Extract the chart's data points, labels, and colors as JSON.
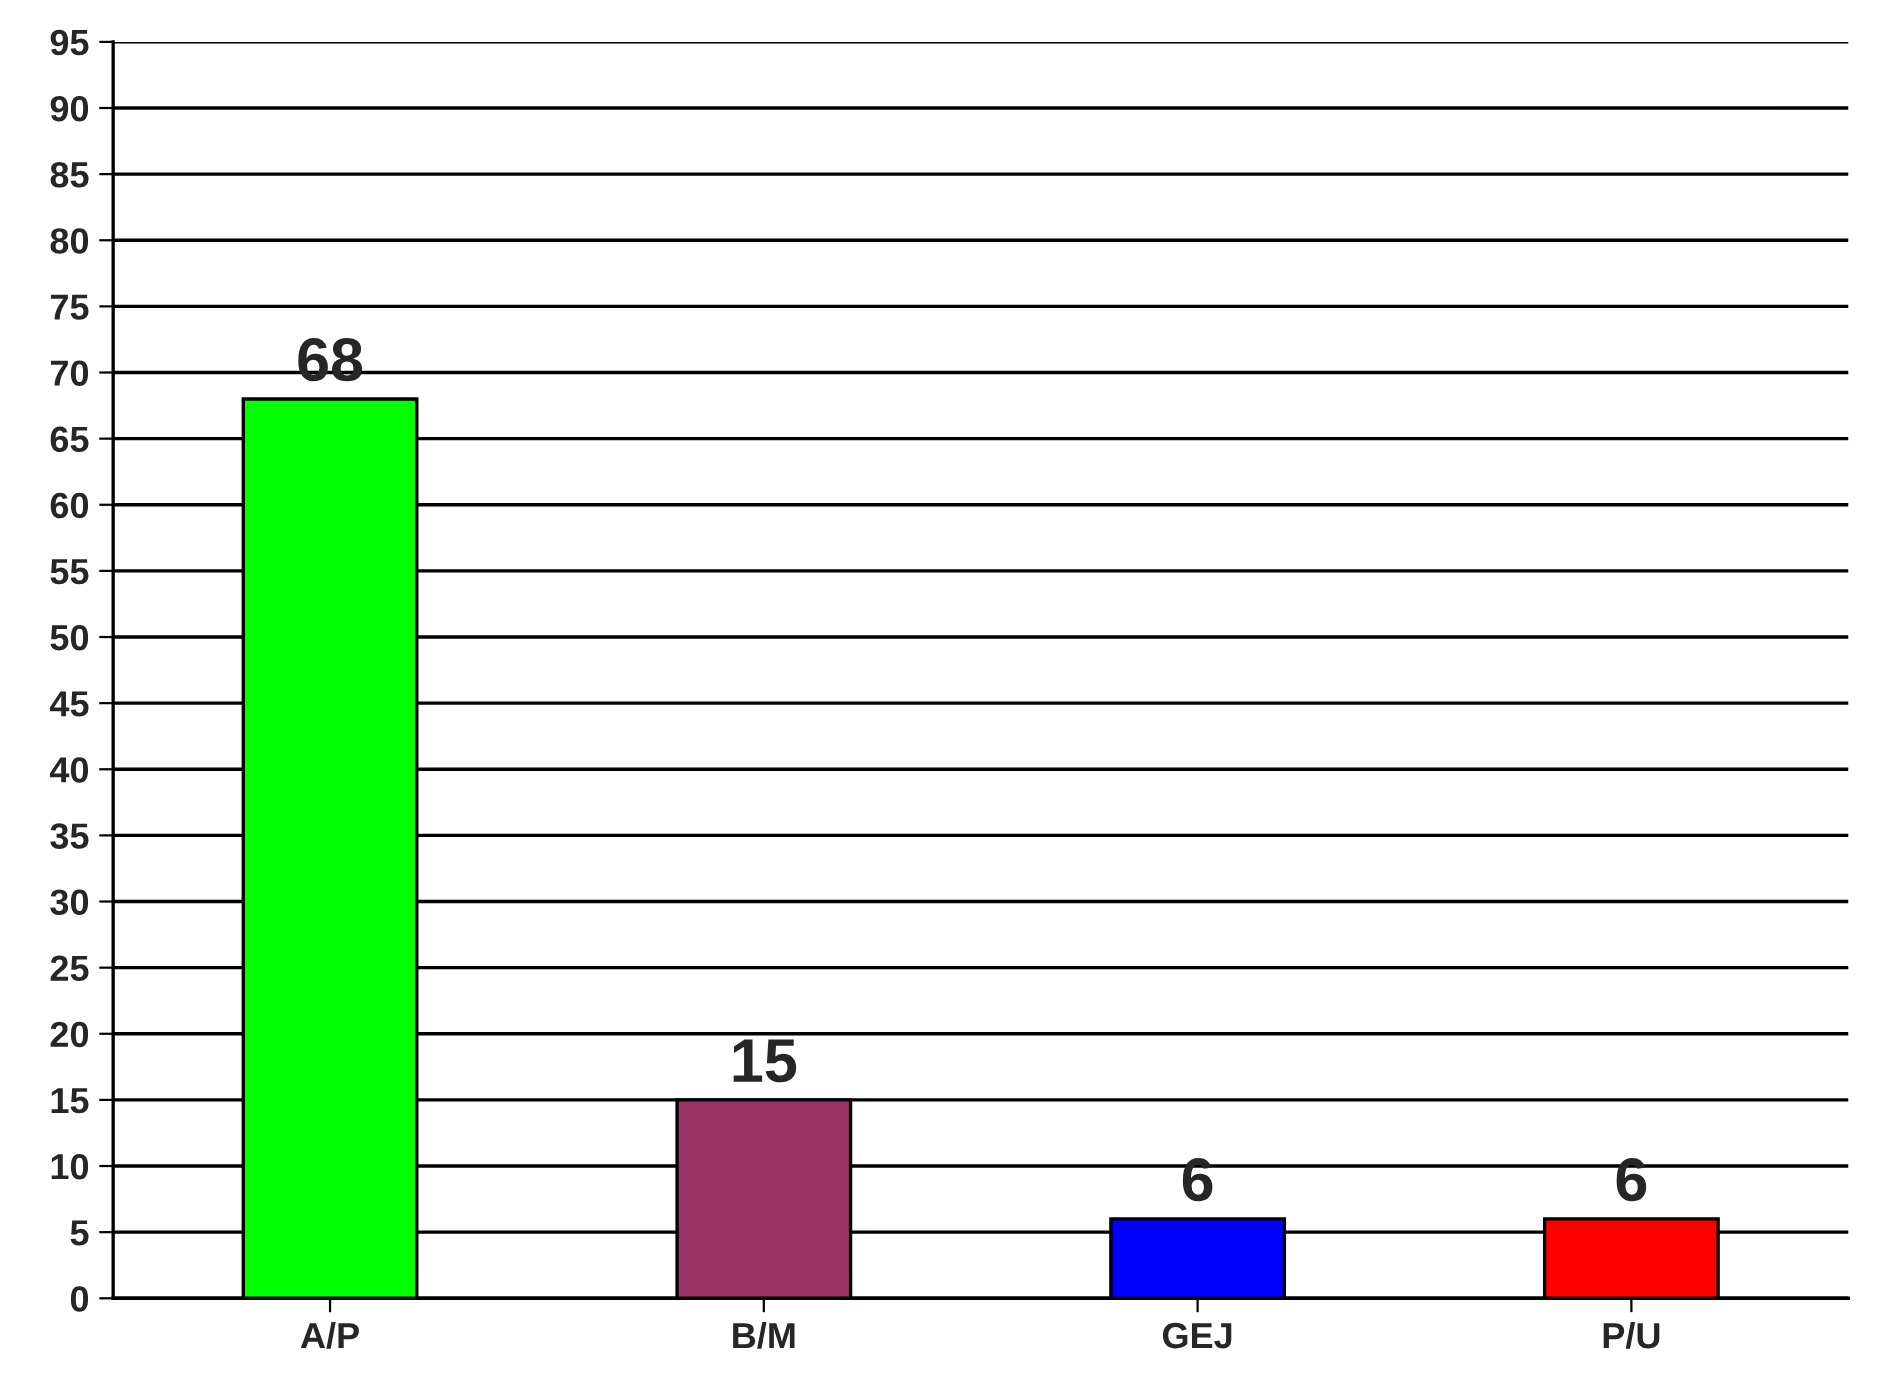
{
  "chart_data": {
    "type": "bar",
    "categories": [
      "A/P",
      "B/M",
      "GEJ",
      "P/U"
    ],
    "values": [
      68,
      15,
      6,
      6
    ],
    "colors": [
      "#00ff00",
      "#993366",
      "#0000ff",
      "#ff0000"
    ],
    "ylim": [
      0,
      95
    ],
    "yticks": [
      0,
      5,
      10,
      15,
      20,
      25,
      30,
      35,
      40,
      45,
      50,
      55,
      60,
      65,
      70,
      75,
      80,
      85,
      90,
      95
    ],
    "grid": "y",
    "data_labels": true
  }
}
